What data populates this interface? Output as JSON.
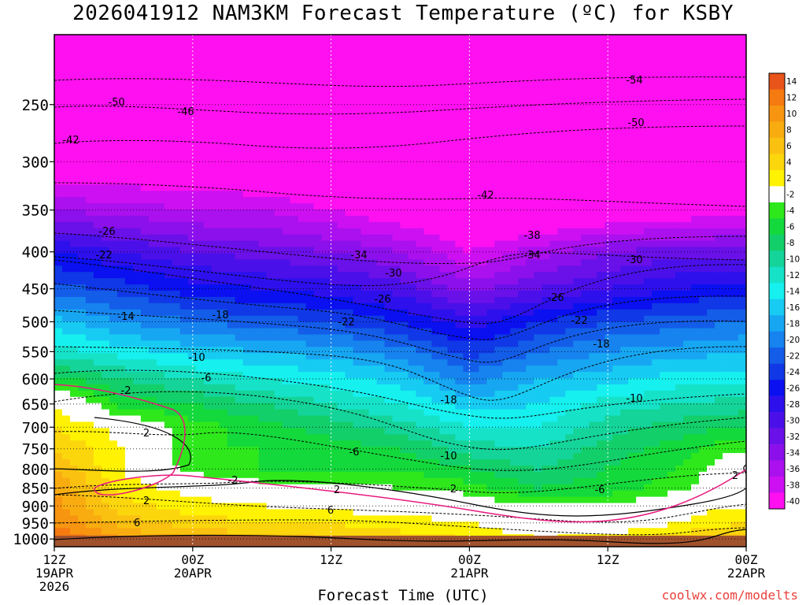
{
  "page": {
    "title": "2026041912 NAM3KM Forecast Temperature (ºC) for KSBY",
    "watermark": "coolwx.com/modelts"
  },
  "chart_data": {
    "type": "heatmap",
    "title": "2026041912 NAM3KM Forecast Temperature (ºC) for KSBY",
    "xlabel": "Forecast Time (UTC)",
    "ylabel": "",
    "y_scale": "log-pressure",
    "y_ticks": [
      250,
      300,
      350,
      400,
      450,
      500,
      550,
      600,
      650,
      700,
      750,
      800,
      850,
      900,
      950,
      1000
    ],
    "y_range_hPa": [
      200,
      1025
    ],
    "x_range_hours": [
      0,
      60
    ],
    "x_ticks": [
      {
        "hour": 0,
        "lines": [
          "12Z",
          "19APR",
          "2026"
        ]
      },
      {
        "hour": 12,
        "lines": [
          "00Z",
          "20APR"
        ]
      },
      {
        "hour": 24,
        "lines": [
          "12Z"
        ]
      },
      {
        "hour": 36,
        "lines": [
          "00Z",
          "21APR"
        ]
      },
      {
        "hour": 48,
        "lines": [
          "12Z"
        ]
      },
      {
        "hour": 60,
        "lines": [
          "00Z",
          "22APR"
        ]
      }
    ],
    "grid": true,
    "colorbar": {
      "position": "right",
      "levels": [
        14,
        12,
        10,
        8,
        6,
        4,
        2,
        -2,
        -4,
        -6,
        -8,
        -10,
        -12,
        -14,
        -16,
        -18,
        -20,
        -22,
        -24,
        -26,
        -28,
        -30,
        -32,
        -34,
        -36,
        -38,
        -40
      ],
      "colors": [
        "#e8541a",
        "#f57a10",
        "#f79510",
        "#f9ac10",
        "#fbc111",
        "#fcd60c",
        "#fff203",
        "#ffffff",
        "#2ee81c",
        "#14d93c",
        "#13cf6a",
        "#15d49a",
        "#16e2c8",
        "#16f0ee",
        "#17cbf3",
        "#17a7f2",
        "#1683ef",
        "#135de8",
        "#1038e6",
        "#0a10f0",
        "#2d10ec",
        "#4b10e9",
        "#6a10e8",
        "#8c10eb",
        "#ab10ee",
        "#cd10f2",
        "#ff10f0"
      ]
    },
    "temperature_grid": {
      "hours": [
        0,
        6,
        12,
        18,
        24,
        30,
        36,
        42,
        48,
        54,
        60
      ],
      "pressure_hPa": [
        200,
        250,
        300,
        350,
        400,
        450,
        500,
        550,
        600,
        650,
        700,
        750,
        800,
        850,
        900,
        950,
        1000
      ],
      "values": [
        [
          -60,
          -58,
          -57,
          -57,
          -58,
          -58,
          -57,
          -58,
          -58,
          -58,
          -58
        ],
        [
          -50,
          -49,
          -48,
          -49,
          -50,
          -50,
          -51,
          -51,
          -51,
          -52,
          -53
        ],
        [
          -42,
          -41,
          -41,
          -42,
          -43,
          -44,
          -46,
          -46,
          -46,
          -46,
          -46
        ],
        [
          -34,
          -35,
          -36,
          -36,
          -38,
          -40,
          -42,
          -42,
          -41,
          -40,
          -39
        ],
        [
          -26,
          -28,
          -30,
          -31,
          -32,
          -34,
          -38,
          -35,
          -32,
          -31,
          -31
        ],
        [
          -21,
          -23,
          -25,
          -26,
          -27,
          -29,
          -33,
          -30,
          -28,
          -26,
          -25
        ],
        [
          -15,
          -18,
          -20,
          -21,
          -22,
          -24,
          -27,
          -24,
          -22,
          -21,
          -20
        ],
        [
          -11,
          -13,
          -15,
          -16,
          -17,
          -19,
          -23,
          -20,
          -18,
          -17,
          -16
        ],
        [
          -5,
          -8,
          -10,
          -12,
          -13,
          -15,
          -19,
          -16,
          -15,
          -13,
          -13
        ],
        [
          2,
          -5,
          -6,
          -8,
          -10,
          -12,
          -15,
          -14,
          -11,
          -10,
          -9
        ],
        [
          4,
          1,
          -3,
          -5,
          -7,
          -9,
          -12,
          -12,
          -9,
          -7,
          -6
        ],
        [
          6,
          2,
          -4,
          -4,
          -5,
          -6,
          -9,
          -10,
          -7,
          -5,
          -2
        ],
        [
          8,
          2,
          -3,
          -4,
          -4,
          -4,
          -6,
          -8,
          -6,
          -4,
          1
        ],
        [
          10,
          3,
          1,
          -1,
          -1,
          -2,
          -3,
          -6,
          -5,
          -3,
          1
        ],
        [
          11,
          5,
          3,
          2,
          1,
          1,
          0,
          -2,
          -2,
          1,
          2
        ],
        [
          12,
          7,
          5,
          4,
          4,
          3,
          2,
          0,
          0,
          2,
          4
        ],
        [
          14,
          10,
          8,
          7,
          6,
          5,
          4,
          2,
          3,
          5,
          7
        ]
      ]
    },
    "contour_labels": [
      "-54",
      "-50",
      "-50",
      "-46",
      "-42",
      "-42",
      "-38",
      "-34",
      "-34",
      "-30",
      "-30",
      "-26",
      "-26",
      "-26",
      "-22",
      "-22",
      "-22",
      "-18",
      "-18",
      "-18",
      "-14",
      "-10",
      "-10",
      "-10",
      "-6",
      "-6",
      "-6",
      "-2",
      "-2",
      "2",
      "2",
      "2",
      "2",
      "2",
      "6",
      "6"
    ]
  }
}
